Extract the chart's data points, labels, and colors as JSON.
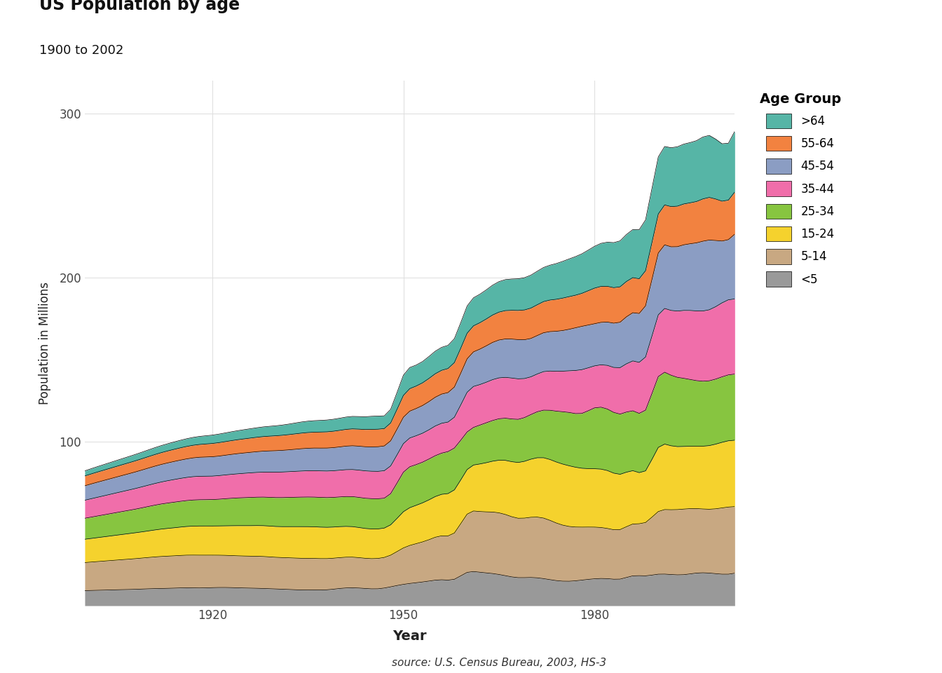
{
  "title": "US Population by age",
  "subtitle": "1900 to 2002",
  "xlabel": "Year",
  "ylabel": "Population in Millions",
  "source": "source: U.S. Census Bureau, 2003, HS-3",
  "legend_title": "Age Group",
  "ylim": [
    0,
    320
  ],
  "yticks": [
    0,
    100,
    200,
    300
  ],
  "background_color": "#ffffff",
  "plot_bg_color": "#ffffff",
  "grid_color": "#e0e0e0",
  "age_groups": [
    "<5",
    "5-14",
    "15-24",
    "25-34",
    "35-44",
    "45-54",
    "55-64",
    ">64"
  ],
  "colors": [
    "#999999",
    "#c8a882",
    "#f5d22d",
    "#87c540",
    "#f06eaa",
    "#8b9dc3",
    "#f28240",
    "#56b5a6"
  ],
  "years": [
    1900,
    1902,
    1904,
    1906,
    1908,
    1910,
    1912,
    1914,
    1916,
    1918,
    1920,
    1922,
    1924,
    1926,
    1928,
    1930,
    1932,
    1934,
    1936,
    1938,
    1940,
    1942,
    1944,
    1946,
    1948,
    1950,
    1952,
    1954,
    1956,
    1958,
    1960,
    1962,
    1964,
    1966,
    1968,
    1970,
    1972,
    1974,
    1976,
    1978,
    1980,
    1982,
    1984,
    1986,
    1988,
    1990,
    1992,
    1994,
    1996,
    1998,
    2000,
    2002
  ],
  "data": {
    "<5": [
      9.2,
      9.4,
      9.6,
      9.8,
      10.0,
      10.3,
      10.5,
      10.7,
      10.9,
      10.8,
      11.0,
      11.1,
      10.9,
      10.7,
      10.5,
      10.2,
      9.9,
      9.6,
      9.6,
      9.7,
      10.5,
      10.9,
      10.5,
      10.3,
      11.5,
      13.0,
      14.0,
      15.0,
      15.8,
      16.1,
      20.3,
      20.4,
      19.6,
      18.3,
      17.1,
      17.2,
      16.5,
      15.3,
      14.9,
      15.6,
      16.4,
      16.5,
      16.2,
      18.2,
      18.2,
      19.2,
      19.0,
      18.9,
      19.9,
      19.9,
      19.2,
      19.8
    ],
    "5-14": [
      17.1,
      17.5,
      17.9,
      18.3,
      18.7,
      19.1,
      19.5,
      19.7,
      19.9,
      20.0,
      19.8,
      19.6,
      19.5,
      19.5,
      19.5,
      19.3,
      19.3,
      19.3,
      19.2,
      19.0,
      18.8,
      18.7,
      18.4,
      18.5,
      19.3,
      22.2,
      23.8,
      25.2,
      26.8,
      28.2,
      35.5,
      37.0,
      37.5,
      37.3,
      36.2,
      36.7,
      36.9,
      35.1,
      33.4,
      32.3,
      31.5,
      30.6,
      30.2,
      31.6,
      32.5,
      38.2,
      39.5,
      40.0,
      39.3,
      38.9,
      40.4,
      40.6
    ],
    "15-24": [
      14.2,
      14.6,
      15.0,
      15.4,
      15.8,
      16.2,
      16.7,
      17.1,
      17.5,
      17.8,
      17.8,
      18.0,
      18.4,
      18.6,
      18.8,
      18.8,
      19.0,
      19.3,
      19.3,
      19.1,
      18.9,
      18.6,
      18.2,
      18.0,
      18.5,
      22.1,
      23.4,
      24.3,
      25.3,
      26.3,
      27.2,
      29.0,
      31.0,
      33.0,
      34.0,
      35.4,
      36.8,
      37.2,
      37.0,
      35.9,
      35.6,
      35.3,
      33.7,
      32.5,
      31.5,
      39.1,
      39.0,
      38.2,
      38.0,
      38.8,
      40.0,
      40.5
    ],
    "25-34": [
      12.8,
      13.2,
      13.6,
      14.0,
      14.4,
      14.9,
      15.3,
      15.6,
      15.8,
      16.0,
      16.1,
      16.5,
      16.9,
      17.2,
      17.4,
      17.6,
      17.8,
      18.0,
      18.1,
      18.1,
      18.1,
      18.3,
      18.4,
      18.4,
      19.0,
      24.1,
      24.8,
      24.9,
      25.1,
      25.5,
      22.9,
      23.7,
      24.8,
      25.7,
      26.3,
      27.2,
      29.0,
      31.0,
      32.5,
      33.4,
      37.1,
      37.5,
      36.7,
      36.5,
      37.0,
      43.2,
      43.0,
      41.5,
      40.0,
      39.5,
      39.9,
      40.3
    ],
    "35-44": [
      11.0,
      11.4,
      11.8,
      12.2,
      12.6,
      13.0,
      13.4,
      13.8,
      14.1,
      14.3,
      14.3,
      14.5,
      14.7,
      15.0,
      15.2,
      15.5,
      15.7,
      15.9,
      16.1,
      16.2,
      16.3,
      16.5,
      16.7,
      16.7,
      16.9,
      17.4,
      17.6,
      17.8,
      18.2,
      18.8,
      24.2,
      24.7,
      24.9,
      24.9,
      24.7,
      23.0,
      23.5,
      24.3,
      25.4,
      26.7,
      25.6,
      26.6,
      28.3,
      30.4,
      32.4,
      37.6,
      39.5,
      41.4,
      42.5,
      43.3,
      45.1,
      45.8
    ],
    "45-54": [
      8.8,
      9.2,
      9.5,
      9.8,
      10.1,
      10.4,
      10.7,
      11.0,
      11.3,
      11.6,
      11.8,
      12.0,
      12.3,
      12.5,
      12.8,
      13.1,
      13.3,
      13.6,
      13.8,
      14.0,
      14.2,
      14.5,
      14.7,
      15.0,
      15.3,
      16.1,
      16.6,
      17.2,
      17.8,
      18.4,
      20.4,
      21.6,
      22.7,
      23.4,
      23.9,
      23.4,
      23.7,
      24.4,
      25.3,
      26.4,
      25.7,
      26.4,
      27.7,
      29.4,
      31.2,
      37.7,
      38.8,
      40.0,
      41.5,
      42.5,
      37.7,
      39.5
    ],
    "55-64": [
      6.0,
      6.2,
      6.4,
      6.6,
      6.8,
      7.0,
      7.2,
      7.4,
      7.6,
      7.8,
      8.1,
      8.3,
      8.5,
      8.7,
      8.9,
      9.1,
      9.3,
      9.5,
      9.7,
      9.9,
      10.1,
      10.3,
      10.5,
      10.7,
      10.9,
      13.3,
      13.7,
      14.1,
      14.5,
      14.9,
      15.6,
      16.1,
      16.7,
      17.3,
      17.8,
      18.5,
      19.0,
      19.5,
      19.9,
      20.1,
      21.7,
      21.8,
      21.6,
      21.4,
      21.4,
      23.8,
      24.5,
      24.9,
      25.2,
      26.0,
      24.3,
      25.7
    ],
    ">64": [
      3.1,
      3.3,
      3.5,
      3.7,
      3.9,
      4.1,
      4.3,
      4.5,
      4.7,
      4.9,
      5.1,
      5.3,
      5.5,
      5.7,
      5.9,
      6.1,
      6.4,
      6.8,
      7.0,
      7.2,
      7.4,
      7.6,
      7.8,
      8.0,
      8.3,
      12.3,
      12.8,
      13.4,
      14.0,
      14.6,
      16.6,
      17.4,
      18.2,
      18.9,
      19.3,
      20.1,
      20.8,
      21.8,
      23.0,
      24.1,
      25.5,
      26.9,
      28.0,
      29.3,
      31.0,
      34.8,
      35.9,
      36.5,
      37.1,
      37.8,
      35.0,
      37.0
    ]
  }
}
